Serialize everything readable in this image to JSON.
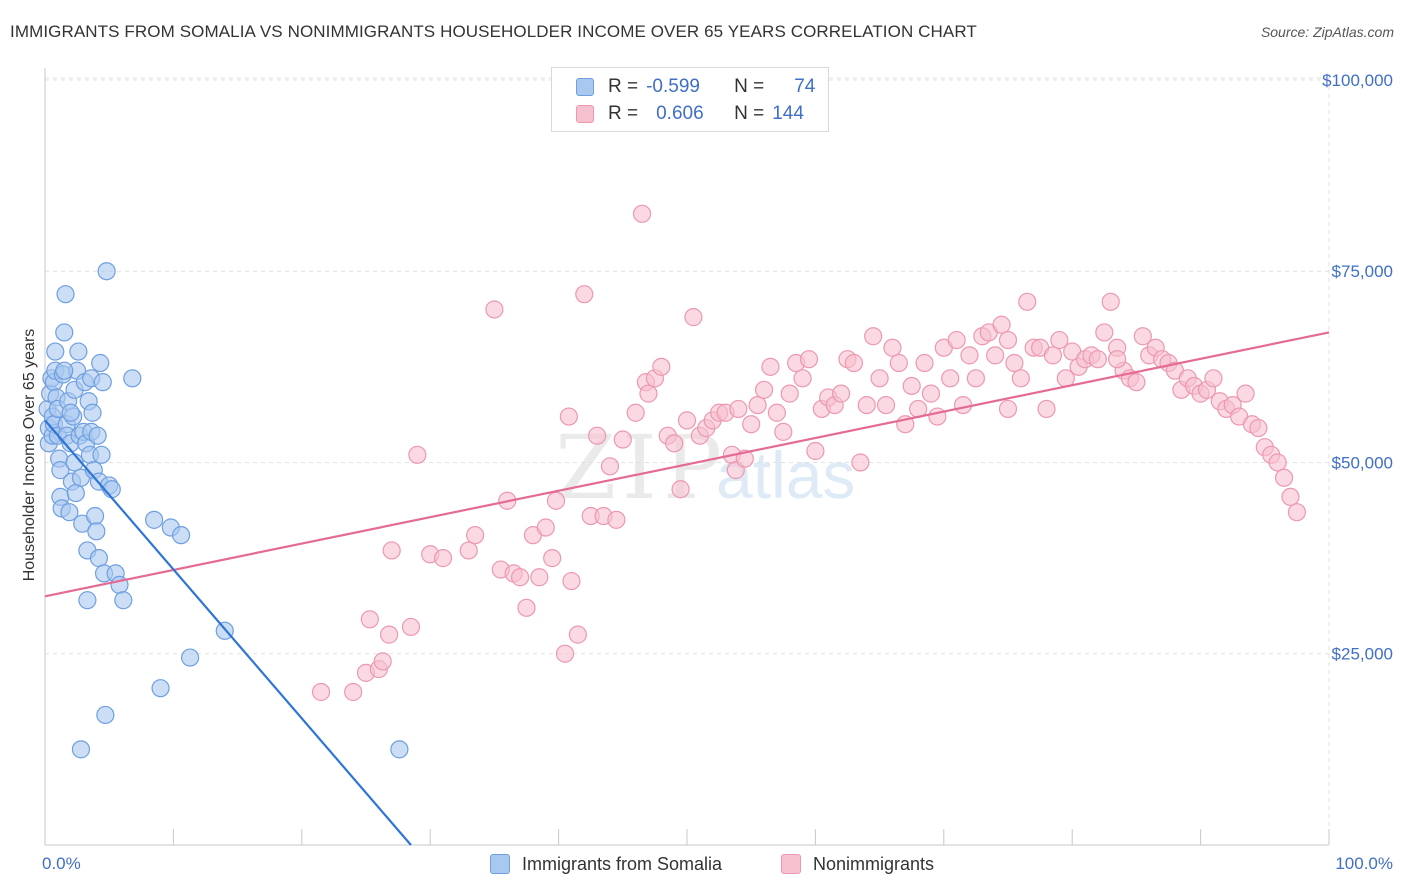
{
  "header": {
    "title": "IMMIGRANTS FROM SOMALIA VS NONIMMIGRANTS HOUSEHOLDER INCOME OVER 65 YEARS CORRELATION CHART",
    "source": "Source: ZipAtlas.com"
  },
  "legend": {
    "rows": [
      {
        "r_label": "R =",
        "r_value": "-0.599",
        "n_label": "N =",
        "n_value": "74"
      },
      {
        "r_label": "R =",
        "r_value": "0.606",
        "n_label": "N =",
        "n_value": "144"
      }
    ]
  },
  "bottom_legend": {
    "somalia": "Immigrants from Somalia",
    "nonimmigrants": "Nonimmigrants"
  },
  "colors": {
    "somalia_fill": "#a9c8f0",
    "somalia_stroke": "#6f9fe0",
    "somalia_line": "#2f75d6",
    "nonimm_fill": "#f7c0cf",
    "nonimm_stroke": "#ec98b1",
    "nonimm_line": "#e46b93",
    "tick_label": "#3f6fc6"
  },
  "chart_data": {
    "type": "scatter",
    "title": "IMMIGRANTS FROM SOMALIA VS NONIMMIGRANTS HOUSEHOLDER INCOME OVER 65 YEARS CORRELATION CHART",
    "xlabel": "",
    "ylabel": "Householder Income Over 65 years",
    "xlim": [
      0,
      100
    ],
    "ylim": [
      0,
      103000
    ],
    "x_tick_labels": [
      "0.0%",
      "100.0%"
    ],
    "y_ticks": [
      25000,
      50000,
      75000,
      100000
    ],
    "y_tick_labels": [
      "$25,000",
      "$50,000",
      "$75,000",
      "$100,000"
    ],
    "grid": true,
    "legend_position": "top-center",
    "watermark": "ZIPatlas",
    "series": [
      {
        "name": "Immigrants from Somalia",
        "r": -0.599,
        "n": 74,
        "trend": [
          [
            0.0,
            55500
          ],
          [
            28.5,
            0
          ]
        ],
        "points": [
          [
            0.2,
            57000
          ],
          [
            0.3,
            54500
          ],
          [
            0.3,
            52500
          ],
          [
            0.4,
            59000
          ],
          [
            0.5,
            61000
          ],
          [
            0.6,
            56000
          ],
          [
            0.6,
            53500
          ],
          [
            0.7,
            55000
          ],
          [
            0.7,
            60500
          ],
          [
            0.8,
            64500
          ],
          [
            0.8,
            62000
          ],
          [
            0.9,
            58500
          ],
          [
            1.0,
            57000
          ],
          [
            1.0,
            53500
          ],
          [
            1.1,
            50500
          ],
          [
            1.2,
            49000
          ],
          [
            1.2,
            45500
          ],
          [
            1.3,
            44000
          ],
          [
            1.4,
            61500
          ],
          [
            1.5,
            67000
          ],
          [
            1.6,
            72000
          ],
          [
            1.7,
            55000
          ],
          [
            1.7,
            53500
          ],
          [
            1.8,
            58000
          ],
          [
            1.9,
            43500
          ],
          [
            2.0,
            52500
          ],
          [
            2.1,
            47500
          ],
          [
            2.2,
            56000
          ],
          [
            2.3,
            59500
          ],
          [
            2.3,
            50000
          ],
          [
            2.4,
            46000
          ],
          [
            2.5,
            62000
          ],
          [
            2.6,
            64500
          ],
          [
            2.7,
            53500
          ],
          [
            2.8,
            48000
          ],
          [
            2.9,
            42000
          ],
          [
            3.0,
            54000
          ],
          [
            3.1,
            60500
          ],
          [
            3.2,
            52500
          ],
          [
            3.3,
            38500
          ],
          [
            3.3,
            32000
          ],
          [
            3.4,
            58000
          ],
          [
            3.5,
            51000
          ],
          [
            3.6,
            54000
          ],
          [
            3.6,
            61000
          ],
          [
            3.7,
            56500
          ],
          [
            3.8,
            49000
          ],
          [
            3.9,
            43000
          ],
          [
            4.0,
            41000
          ],
          [
            4.1,
            53500
          ],
          [
            4.2,
            37500
          ],
          [
            4.2,
            47500
          ],
          [
            4.3,
            63000
          ],
          [
            4.4,
            51000
          ],
          [
            4.5,
            60500
          ],
          [
            4.6,
            35500
          ],
          [
            4.7,
            17000
          ],
          [
            4.8,
            75000
          ],
          [
            5.0,
            47000
          ],
          [
            5.2,
            46500
          ],
          [
            5.5,
            35500
          ],
          [
            5.8,
            34000
          ],
          [
            6.1,
            32000
          ],
          [
            6.8,
            61000
          ],
          [
            8.5,
            42500
          ],
          [
            9.0,
            20500
          ],
          [
            9.8,
            41500
          ],
          [
            10.6,
            40500
          ],
          [
            11.3,
            24500
          ],
          [
            14.0,
            28000
          ],
          [
            27.6,
            12500
          ],
          [
            2.8,
            12500
          ],
          [
            1.5,
            62000
          ],
          [
            2.0,
            56500
          ]
        ]
      },
      {
        "name": "Nonimmigrants",
        "r": 0.606,
        "n": 144,
        "trend": [
          [
            0.0,
            32500
          ],
          [
            100.0,
            67000
          ]
        ],
        "points": [
          [
            21.5,
            20000
          ],
          [
            24.0,
            20000
          ],
          [
            25.0,
            22500
          ],
          [
            25.3,
            29500
          ],
          [
            26.0,
            23000
          ],
          [
            26.3,
            24000
          ],
          [
            26.8,
            27500
          ],
          [
            27.0,
            38500
          ],
          [
            28.5,
            28500
          ],
          [
            29.0,
            51000
          ],
          [
            30.0,
            38000
          ],
          [
            31.0,
            37500
          ],
          [
            33.0,
            38500
          ],
          [
            33.5,
            40500
          ],
          [
            35.0,
            70000
          ],
          [
            35.5,
            36000
          ],
          [
            36.0,
            45000
          ],
          [
            36.5,
            35500
          ],
          [
            37.0,
            35000
          ],
          [
            37.5,
            31000
          ],
          [
            38.0,
            40500
          ],
          [
            38.5,
            35000
          ],
          [
            39.0,
            41500
          ],
          [
            39.5,
            37500
          ],
          [
            39.8,
            45000
          ],
          [
            40.5,
            25000
          ],
          [
            40.8,
            56000
          ],
          [
            41.0,
            34500
          ],
          [
            41.5,
            27500
          ],
          [
            42.0,
            72000
          ],
          [
            42.5,
            43000
          ],
          [
            43.0,
            53500
          ],
          [
            43.5,
            43000
          ],
          [
            44.0,
            49500
          ],
          [
            44.5,
            42500
          ],
          [
            45.0,
            53000
          ],
          [
            46.0,
            56500
          ],
          [
            46.5,
            82500
          ],
          [
            46.8,
            60500
          ],
          [
            47.0,
            59000
          ],
          [
            47.5,
            61000
          ],
          [
            48.0,
            62500
          ],
          [
            48.5,
            53500
          ],
          [
            49.0,
            52500
          ],
          [
            49.5,
            46500
          ],
          [
            50.0,
            55500
          ],
          [
            50.5,
            69000
          ],
          [
            51.0,
            53500
          ],
          [
            51.5,
            54500
          ],
          [
            52.0,
            55500
          ],
          [
            52.5,
            56500
          ],
          [
            53.0,
            56500
          ],
          [
            53.5,
            51000
          ],
          [
            53.8,
            49000
          ],
          [
            54.0,
            57000
          ],
          [
            54.5,
            50500
          ],
          [
            55.0,
            55000
          ],
          [
            55.5,
            57500
          ],
          [
            56.0,
            59500
          ],
          [
            56.5,
            62500
          ],
          [
            57.0,
            56500
          ],
          [
            57.5,
            54000
          ],
          [
            58.0,
            59000
          ],
          [
            58.5,
            63000
          ],
          [
            59.0,
            61000
          ],
          [
            59.5,
            63500
          ],
          [
            60.0,
            51500
          ],
          [
            60.5,
            57000
          ],
          [
            61.0,
            58500
          ],
          [
            61.5,
            57500
          ],
          [
            62.0,
            59000
          ],
          [
            62.5,
            63500
          ],
          [
            63.0,
            63000
          ],
          [
            63.5,
            50000
          ],
          [
            64.0,
            57500
          ],
          [
            64.5,
            66500
          ],
          [
            65.0,
            61000
          ],
          [
            65.5,
            57500
          ],
          [
            66.0,
            65000
          ],
          [
            66.5,
            63000
          ],
          [
            67.0,
            55000
          ],
          [
            67.5,
            60000
          ],
          [
            68.0,
            57000
          ],
          [
            68.5,
            63000
          ],
          [
            69.0,
            59000
          ],
          [
            69.5,
            56000
          ],
          [
            70.0,
            65000
          ],
          [
            70.5,
            61000
          ],
          [
            71.0,
            66000
          ],
          [
            71.5,
            57500
          ],
          [
            72.0,
            64000
          ],
          [
            72.5,
            61000
          ],
          [
            73.0,
            66500
          ],
          [
            73.5,
            67000
          ],
          [
            74.0,
            64000
          ],
          [
            74.5,
            68000
          ],
          [
            75.0,
            66000
          ],
          [
            75.5,
            63000
          ],
          [
            76.0,
            61000
          ],
          [
            76.5,
            71000
          ],
          [
            77.0,
            65000
          ],
          [
            77.5,
            65000
          ],
          [
            78.0,
            57000
          ],
          [
            78.5,
            64000
          ],
          [
            79.0,
            66000
          ],
          [
            79.5,
            61000
          ],
          [
            80.0,
            64500
          ],
          [
            80.5,
            62500
          ],
          [
            81.0,
            63500
          ],
          [
            81.5,
            64000
          ],
          [
            82.0,
            63500
          ],
          [
            82.5,
            67000
          ],
          [
            83.0,
            71000
          ],
          [
            83.5,
            65000
          ],
          [
            84.0,
            62000
          ],
          [
            84.5,
            61000
          ],
          [
            85.0,
            60500
          ],
          [
            85.5,
            66500
          ],
          [
            86.0,
            64000
          ],
          [
            86.5,
            65000
          ],
          [
            87.0,
            63500
          ],
          [
            87.5,
            63000
          ],
          [
            88.0,
            62000
          ],
          [
            88.5,
            59500
          ],
          [
            89.0,
            61000
          ],
          [
            89.5,
            60000
          ],
          [
            90.0,
            59000
          ],
          [
            90.5,
            59500
          ],
          [
            91.0,
            61000
          ],
          [
            91.5,
            58000
          ],
          [
            92.0,
            57000
          ],
          [
            92.5,
            57500
          ],
          [
            93.0,
            56000
          ],
          [
            93.5,
            59000
          ],
          [
            94.0,
            55000
          ],
          [
            94.5,
            54500
          ],
          [
            95.0,
            52000
          ],
          [
            95.5,
            51000
          ],
          [
            96.0,
            50000
          ],
          [
            96.5,
            48000
          ],
          [
            97.0,
            45500
          ],
          [
            97.5,
            43500
          ],
          [
            83.5,
            63500
          ],
          [
            75.0,
            57000
          ]
        ]
      }
    ]
  }
}
